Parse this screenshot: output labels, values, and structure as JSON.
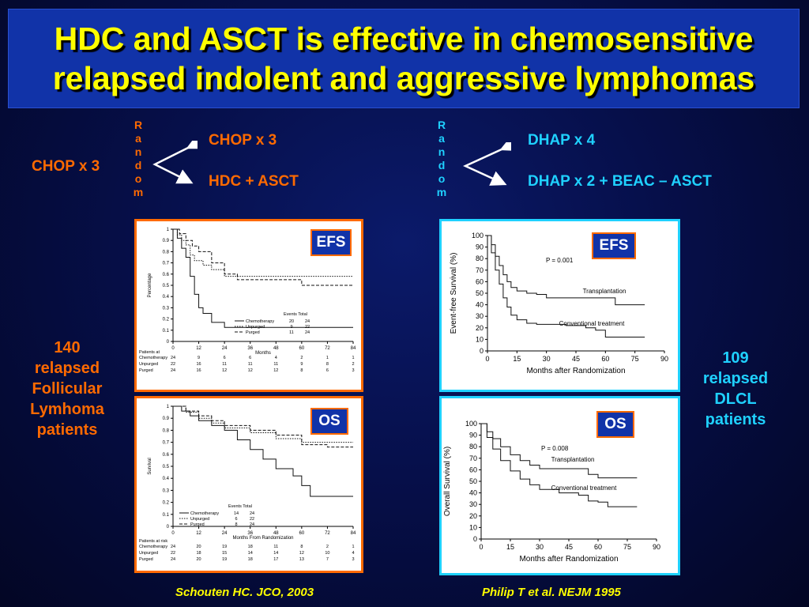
{
  "title": {
    "line1": "HDC and ASCT is effective in chemosensitive",
    "line2": "relapsed indolent and aggressive lymphomas"
  },
  "colors": {
    "accent": "#ff6a00",
    "cyan": "#1fd1ff",
    "title_text": "#ffff00",
    "title_bg": "#1133a8"
  },
  "left_design": {
    "induction": "CHOP x 3",
    "random_letters": [
      "R",
      "a",
      "n",
      "d",
      "o",
      "m"
    ],
    "arm1": "CHOP x 3",
    "arm2": "HDC + ASCT"
  },
  "right_design": {
    "random_letters": [
      "R",
      "a",
      "n",
      "d",
      "o",
      "m"
    ],
    "arm1": "DHAP x 4",
    "arm2": "DHAP x 2 + BEAC – ASCT"
  },
  "left_caption": [
    "140",
    "relapsed",
    "Follicular",
    "Lymhoma",
    "patients"
  ],
  "right_caption": [
    "109",
    "relapsed",
    "DLCL",
    "patients"
  ],
  "citations": {
    "left": "Schouten HC. JCO, 2003",
    "right": "Philip T et al. NEJM 1995"
  },
  "tags": {
    "efs": "EFS",
    "os": "OS"
  },
  "chart_data": [
    {
      "type": "line",
      "id": "left-efs",
      "ylabel": "Percentage",
      "xlabel": "Months",
      "xlim": [
        0,
        84
      ],
      "ylim": [
        0,
        1.0
      ],
      "xticks": [
        0,
        12,
        24,
        36,
        48,
        60,
        72,
        84
      ],
      "yticks": [
        0,
        0.1,
        0.2,
        0.3,
        0.4,
        0.5,
        0.6,
        0.7,
        0.8,
        0.9,
        1.0
      ],
      "legend_header": "Events  Total",
      "series": [
        {
          "name": "Chemotherapy",
          "events": "20",
          "total": "24",
          "style": "solid",
          "x": [
            0,
            2,
            4,
            6,
            8,
            10,
            12,
            14,
            18,
            24,
            30,
            84
          ],
          "y": [
            1.0,
            0.92,
            0.83,
            0.75,
            0.58,
            0.42,
            0.3,
            0.25,
            0.17,
            0.125,
            0.125,
            0.125
          ]
        },
        {
          "name": "Unpurged",
          "events": "9",
          "total": "22",
          "style": "dotted",
          "x": [
            0,
            2,
            4,
            6,
            8,
            10,
            14,
            18,
            24,
            36,
            84
          ],
          "y": [
            1.0,
            0.95,
            0.9,
            0.86,
            0.77,
            0.72,
            0.68,
            0.64,
            0.58,
            0.58,
            0.58
          ]
        },
        {
          "name": "Purged",
          "events": "11",
          "total": "24",
          "style": "dashed",
          "x": [
            0,
            3,
            6,
            9,
            12,
            18,
            24,
            30,
            48,
            60,
            84
          ],
          "y": [
            1.0,
            0.96,
            0.9,
            0.85,
            0.8,
            0.7,
            0.6,
            0.55,
            0.55,
            0.5,
            0.5
          ]
        }
      ],
      "risk_table": {
        "header": "Patients at",
        "rows": [
          {
            "label": "Chemotherapy",
            "values": [
              "24",
              "9",
              "6",
              "6",
              "4",
              "2",
              "1",
              "1"
            ]
          },
          {
            "label": "Unpurged",
            "values": [
              "22",
              "16",
              "11",
              "11",
              "11",
              "9",
              "8",
              "2"
            ]
          },
          {
            "label": "Purged",
            "values": [
              "24",
              "16",
              "12",
              "12",
              "12",
              "8",
              "6",
              "3"
            ]
          }
        ]
      }
    },
    {
      "type": "line",
      "id": "left-os",
      "ylabel": "Survival",
      "xlabel": "Months From Randomization",
      "xlim": [
        0,
        84
      ],
      "ylim": [
        0,
        1.0
      ],
      "xticks": [
        0,
        12,
        24,
        36,
        48,
        60,
        72,
        84
      ],
      "yticks": [
        0,
        0.1,
        0.2,
        0.3,
        0.4,
        0.5,
        0.6,
        0.7,
        0.8,
        0.9,
        1.0
      ],
      "legend_header": "Events  Total",
      "series": [
        {
          "name": "Chemotherapy",
          "events": "14",
          "total": "24",
          "style": "solid",
          "x": [
            0,
            4,
            8,
            12,
            18,
            24,
            30,
            36,
            42,
            48,
            56,
            60,
            64,
            84
          ],
          "y": [
            1.0,
            0.96,
            0.92,
            0.88,
            0.84,
            0.8,
            0.72,
            0.64,
            0.56,
            0.48,
            0.42,
            0.34,
            0.25,
            0.25
          ]
        },
        {
          "name": "Unpurged",
          "events": "6",
          "total": "22",
          "style": "dotted",
          "x": [
            0,
            6,
            12,
            18,
            24,
            36,
            48,
            60,
            72,
            84
          ],
          "y": [
            1.0,
            0.95,
            0.9,
            0.86,
            0.82,
            0.78,
            0.73,
            0.7,
            0.7,
            0.7
          ]
        },
        {
          "name": "Purged",
          "events": "8",
          "total": "24",
          "style": "dashed",
          "x": [
            0,
            6,
            12,
            18,
            24,
            36,
            48,
            60,
            72,
            84
          ],
          "y": [
            1.0,
            0.96,
            0.92,
            0.88,
            0.84,
            0.8,
            0.76,
            0.68,
            0.66,
            0.66
          ]
        }
      ],
      "risk_table": {
        "header": "Patients at risk",
        "rows": [
          {
            "label": "Chemotherapy",
            "values": [
              "24",
              "20",
              "19",
              "18",
              "11",
              "8",
              "2",
              "1"
            ]
          },
          {
            "label": "Unpurged",
            "values": [
              "22",
              "18",
              "15",
              "14",
              "14",
              "12",
              "10",
              "4"
            ]
          },
          {
            "label": "Purged",
            "values": [
              "24",
              "20",
              "19",
              "18",
              "17",
              "13",
              "7",
              "3"
            ]
          }
        ]
      }
    },
    {
      "type": "line",
      "id": "right-efs",
      "ylabel": "Event-free Survival (%)",
      "xlabel": "Months after Randomization",
      "xlim": [
        0,
        90
      ],
      "ylim": [
        0,
        100
      ],
      "xticks": [
        0,
        15,
        30,
        45,
        60,
        75,
        90
      ],
      "yticks": [
        0,
        10,
        20,
        30,
        40,
        50,
        60,
        70,
        80,
        90,
        100
      ],
      "annotation": "P = 0.001",
      "series": [
        {
          "name": "Transplantation",
          "x": [
            0,
            2,
            4,
            6,
            8,
            10,
            12,
            15,
            20,
            25,
            30,
            45,
            50,
            55,
            60,
            65,
            70,
            75,
            80
          ],
          "y": [
            100,
            92,
            82,
            74,
            66,
            60,
            55,
            52,
            50,
            49,
            46,
            46,
            46,
            46,
            46,
            40,
            40,
            40,
            40
          ]
        },
        {
          "name": "Conventional treatment",
          "x": [
            0,
            2,
            4,
            6,
            8,
            10,
            12,
            15,
            20,
            25,
            30,
            40,
            50,
            55,
            60,
            65,
            70,
            75,
            80
          ],
          "y": [
            100,
            85,
            70,
            58,
            46,
            38,
            31,
            27,
            24,
            23,
            23,
            22,
            20,
            18,
            12,
            12,
            12,
            12,
            12
          ]
        }
      ]
    },
    {
      "type": "line",
      "id": "right-os",
      "ylabel": "Overall Survival (%)",
      "xlabel": "Months after Randomization",
      "xlim": [
        0,
        90
      ],
      "ylim": [
        0,
        100
      ],
      "xticks": [
        0,
        15,
        30,
        45,
        60,
        75,
        90
      ],
      "yticks": [
        0,
        10,
        20,
        30,
        40,
        50,
        60,
        70,
        80,
        90,
        100
      ],
      "annotation": "P = 0.008",
      "series": [
        {
          "name": "Transplantation",
          "x": [
            0,
            3,
            6,
            10,
            15,
            20,
            25,
            30,
            40,
            50,
            55,
            60,
            70,
            80
          ],
          "y": [
            100,
            93,
            87,
            80,
            73,
            68,
            64,
            61,
            61,
            61,
            56,
            53,
            53,
            53
          ]
        },
        {
          "name": "Conventional treatment",
          "x": [
            0,
            3,
            6,
            10,
            15,
            20,
            25,
            30,
            40,
            50,
            55,
            60,
            65,
            70,
            80
          ],
          "y": [
            100,
            88,
            78,
            68,
            59,
            52,
            47,
            43,
            40,
            38,
            33,
            32,
            28,
            28,
            28
          ]
        }
      ]
    }
  ]
}
